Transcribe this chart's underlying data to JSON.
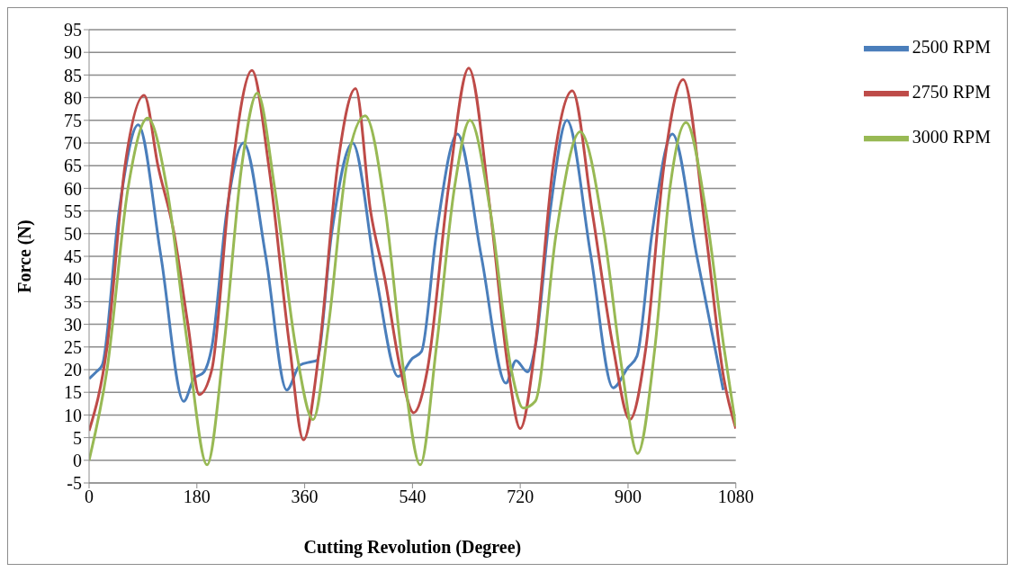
{
  "chart_data": {
    "type": "line",
    "xlabel": "Cutting Revolution (Degree)",
    "ylabel": "Force (N)",
    "xlim": [
      0,
      1080
    ],
    "xticks": [
      0,
      180,
      360,
      540,
      720,
      900,
      1080
    ],
    "ylim": [
      -5,
      95
    ],
    "yticks": [
      -5,
      0,
      5,
      10,
      15,
      20,
      25,
      30,
      35,
      40,
      45,
      50,
      55,
      60,
      65,
      70,
      75,
      80,
      85,
      90,
      95
    ],
    "grid": "y",
    "legend": "top right",
    "marker": "none",
    "line_style": "solid",
    "series": [
      {
        "name": "2500 RPM",
        "color": "#4a7ebb",
        "x": [
          0,
          12,
          22,
          50,
          82,
          120,
          158,
          175,
          192,
          205,
          230,
          258,
          295,
          330,
          352,
          370,
          380,
          405,
          440,
          480,
          516,
          540,
          555,
          580,
          615,
          655,
          696,
          713,
          732,
          745,
          770,
          798,
          838,
          875,
          900,
          915,
          940,
          974,
          1015,
          1059
        ],
        "values": [
          18,
          19.5,
          21,
          55,
          74,
          45,
          13,
          18,
          19.5,
          25,
          55,
          70,
          45,
          15.5,
          21,
          21.7,
          22,
          50,
          70,
          40,
          18.5,
          22.5,
          24,
          50,
          72,
          45,
          17,
          22,
          19.5,
          25,
          55,
          75,
          45,
          16,
          20.5,
          23,
          50,
          72,
          45,
          15.5
        ]
      },
      {
        "name": "2750 RPM",
        "color": "#be4b48",
        "x": [
          0,
          30,
          60,
          92,
          115,
          142,
          165,
          184,
          205,
          235,
          272,
          300,
          335,
          358,
          385,
          415,
          445,
          470,
          494,
          520,
          542,
          565,
          600,
          634,
          670,
          700,
          720,
          745,
          775,
          807,
          840,
          875,
          903,
          930,
          960,
          992,
          1030,
          1060,
          1080
        ],
        "values": [
          6.5,
          25,
          65,
          80.5,
          65,
          50,
          30,
          14.5,
          20,
          60,
          86,
          65,
          25,
          4.5,
          25,
          65,
          82,
          55,
          40,
          20,
          10.5,
          20,
          60,
          86.5,
          55,
          20,
          7,
          25,
          65,
          81.5,
          55,
          25,
          9,
          25,
          65,
          84,
          50,
          18,
          7
        ]
      },
      {
        "name": "3000 RPM",
        "color": "#98b954",
        "x": [
          0,
          30,
          65,
          98,
          130,
          165,
          197,
          225,
          255,
          281,
          310,
          345,
          374,
          400,
          430,
          461,
          495,
          525,
          553,
          580,
          610,
          636,
          670,
          705,
          725,
          745,
          780,
          820,
          860,
          890,
          916,
          945,
          970,
          997,
          1030,
          1060,
          1080
        ],
        "values": [
          0,
          20,
          60,
          75.5,
          60,
          25,
          -1,
          25,
          65,
          81,
          60,
          25,
          9,
          30,
          65,
          76,
          55,
          20,
          -1,
          25,
          60,
          75,
          55,
          20,
          11.5,
          13,
          50,
          72.5,
          50,
          20,
          1.5,
          25,
          60,
          74.5,
          55,
          25,
          7.5
        ]
      }
    ]
  }
}
